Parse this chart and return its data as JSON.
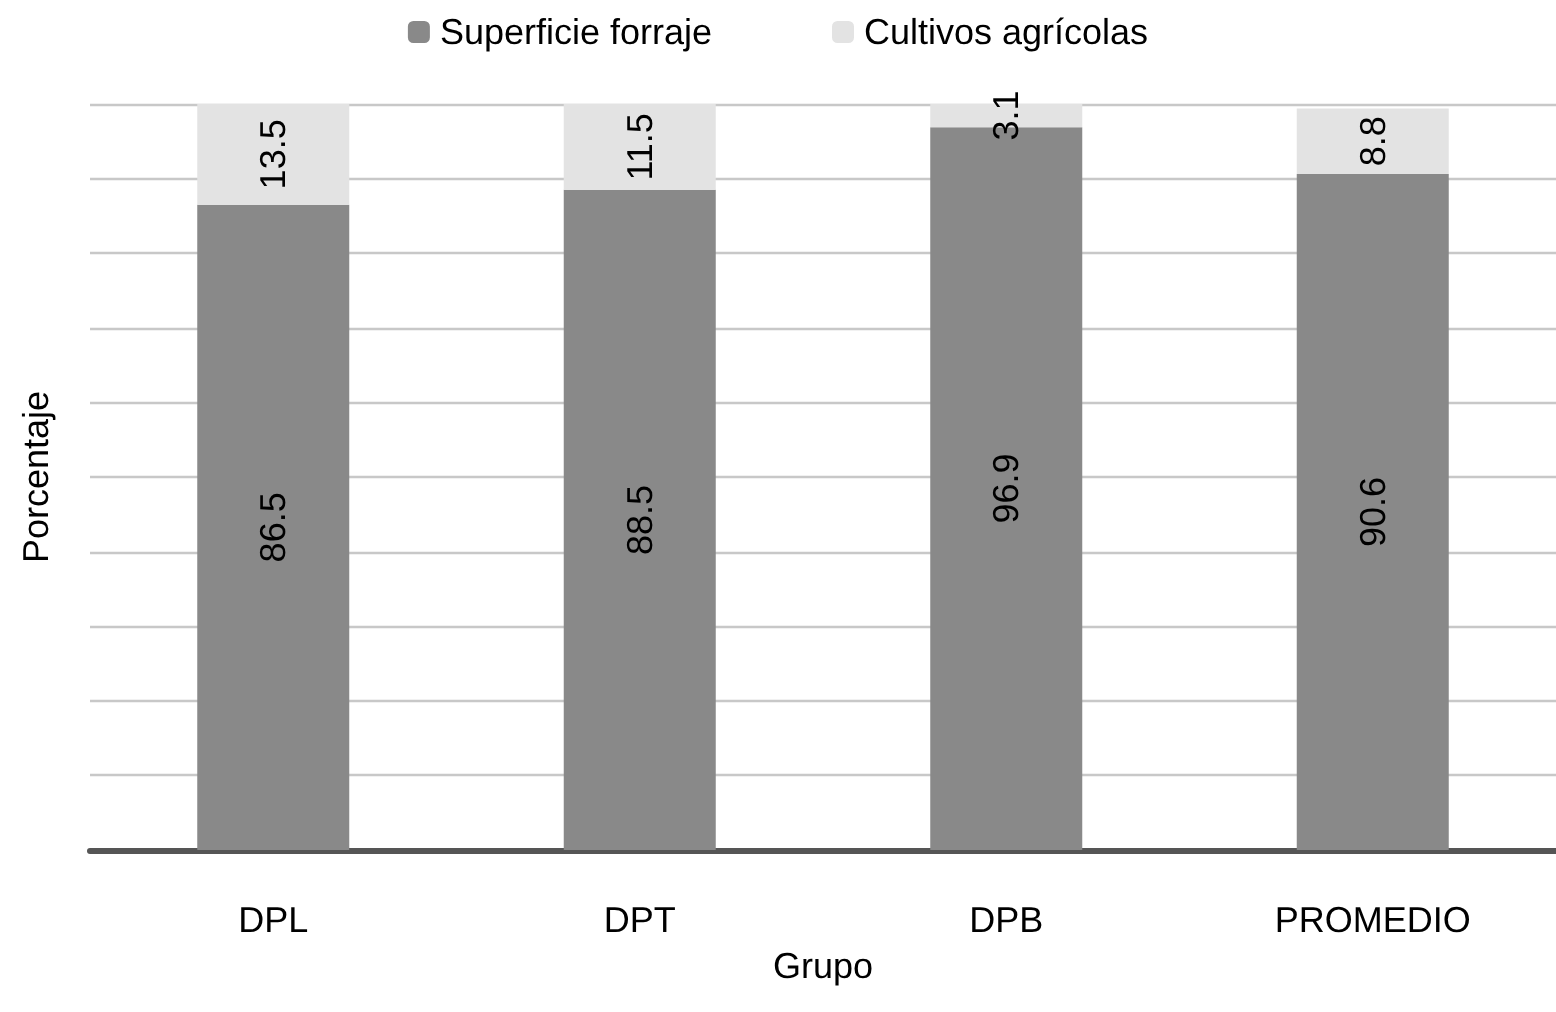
{
  "chart_data": {
    "type": "bar",
    "xlabel": "Grupo",
    "ylabel": "Porcentaje",
    "categories": [
      "DPL",
      "DPT",
      "DPB",
      "PROMEDIO"
    ],
    "series": [
      {
        "name": "Superficie forraje",
        "color": "#898989",
        "values": [
          86.5,
          88.5,
          96.9,
          90.6
        ]
      },
      {
        "name": "Cultivos agrícolas",
        "color": "#e3e3e3",
        "values": [
          13.5,
          11.5,
          3.1,
          8.8
        ]
      }
    ],
    "stacked": true,
    "data_labels": true,
    "ylim": [
      0,
      100
    ],
    "yticks": [
      {
        "value": 0,
        "label": null
      },
      {
        "value": 10,
        "label": null
      },
      {
        "value": 20,
        "label": null
      },
      {
        "value": 30,
        "label": null
      },
      {
        "value": 40,
        "label": null
      },
      {
        "value": 50,
        "label": null
      },
      {
        "value": 60,
        "label": null
      },
      {
        "value": 70,
        "label": null
      },
      {
        "value": 80,
        "label": null
      },
      {
        "value": 90,
        "label": null
      },
      {
        "value": 100,
        "label": null
      }
    ],
    "tick_labels": "x",
    "grid": "y",
    "legend": "top"
  }
}
